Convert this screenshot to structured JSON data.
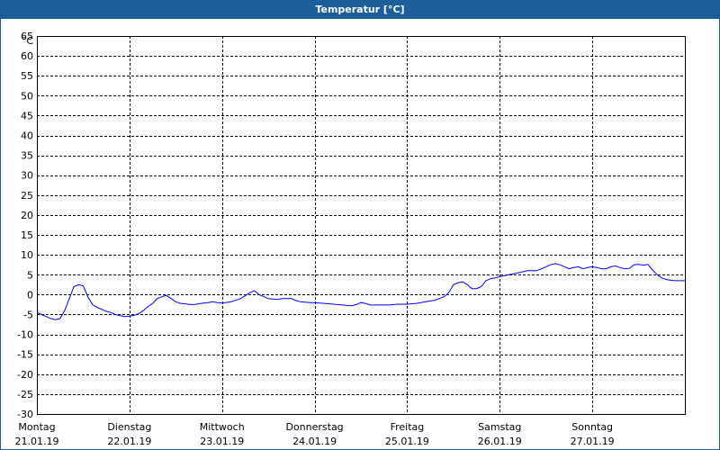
{
  "header": {
    "title": "Temperatur [°C]"
  },
  "chart_data": {
    "type": "line",
    "title": "Temperatur [°C]",
    "ylabel": "°C",
    "ylim": [
      -30,
      65
    ],
    "yticks": [
      65,
      60,
      55,
      50,
      45,
      40,
      35,
      30,
      25,
      20,
      15,
      10,
      5,
      0,
      -5,
      -10,
      -15,
      -20,
      -25,
      -30
    ],
    "xlim": [
      0,
      7
    ],
    "xticks": [
      {
        "day": "Montag",
        "date": "21.01.19",
        "x": 0
      },
      {
        "day": "Dienstag",
        "date": "22.01.19",
        "x": 1
      },
      {
        "day": "Mittwoch",
        "date": "23.01.19",
        "x": 2
      },
      {
        "day": "Donnerstag",
        "date": "24.01.19",
        "x": 3
      },
      {
        "day": "Freitag",
        "date": "25.01.19",
        "x": 4
      },
      {
        "day": "Samstag",
        "date": "26.01.19",
        "x": 5
      },
      {
        "day": "Sonntag",
        "date": "27.01.19",
        "x": 6
      }
    ],
    "grid": true,
    "colors": {
      "line": "#0000ff",
      "frame": "#1c5e97"
    },
    "series": [
      {
        "x": [
          0.0,
          0.05,
          0.1,
          0.15,
          0.2,
          0.25,
          0.3,
          0.35,
          0.4,
          0.45,
          0.5,
          0.55,
          0.6,
          0.65,
          0.7,
          0.75,
          0.8,
          0.85,
          0.9,
          0.95,
          1.0,
          1.05,
          1.1,
          1.15,
          1.2,
          1.25,
          1.3,
          1.35,
          1.4,
          1.45,
          1.5,
          1.55,
          1.6,
          1.65,
          1.7,
          1.75,
          1.8,
          1.85,
          1.9,
          1.95,
          2.0,
          2.1,
          2.2,
          2.3,
          2.35,
          2.4,
          2.5,
          2.6,
          2.65,
          2.7,
          2.75,
          2.8,
          2.85,
          2.9,
          2.95,
          3.0,
          3.1,
          3.2,
          3.3,
          3.4,
          3.45,
          3.5,
          3.55,
          3.6,
          3.7,
          3.8,
          3.9,
          4.0,
          4.1,
          4.2,
          4.3,
          4.4,
          4.45,
          4.5,
          4.55,
          4.6,
          4.65,
          4.7,
          4.75,
          4.8,
          4.85,
          4.9,
          4.95,
          5.0,
          5.1,
          5.2,
          5.3,
          5.4,
          5.5,
          5.55,
          5.6,
          5.65,
          5.7,
          5.75,
          5.8,
          5.85,
          5.9,
          5.95,
          6.0,
          6.05,
          6.1,
          6.15,
          6.2,
          6.25,
          6.3,
          6.35,
          6.4,
          6.45,
          6.5,
          6.55,
          6.6,
          6.65,
          6.7,
          6.75,
          6.8,
          6.85,
          6.9,
          6.95,
          7.0
        ],
        "values": [
          -4.5,
          -5.0,
          -5.5,
          -6.0,
          -6.3,
          -6.0,
          -4.0,
          -1.0,
          2.0,
          2.5,
          2.2,
          -0.5,
          -2.5,
          -3.2,
          -3.7,
          -4.2,
          -4.5,
          -5.0,
          -5.3,
          -5.5,
          -5.4,
          -5.2,
          -4.8,
          -4.0,
          -3.0,
          -2.2,
          -1.0,
          -0.5,
          -0.2,
          -1.0,
          -1.8,
          -2.2,
          -2.3,
          -2.5,
          -2.5,
          -2.3,
          -2.1,
          -2.0,
          -1.8,
          -2.0,
          -2.1,
          -1.8,
          -1.0,
          0.5,
          1.0,
          0.0,
          -1.0,
          -1.2,
          -1.0,
          -1.0,
          -1.0,
          -1.5,
          -1.8,
          -1.9,
          -2.0,
          -2.0,
          -2.2,
          -2.4,
          -2.6,
          -2.8,
          -2.5,
          -2.0,
          -2.2,
          -2.6,
          -2.6,
          -2.6,
          -2.4,
          -2.4,
          -2.2,
          -1.8,
          -1.4,
          -0.5,
          0.5,
          2.5,
          3.0,
          3.2,
          2.5,
          1.5,
          1.5,
          2.0,
          3.5,
          4.0,
          4.2,
          4.5,
          5.0,
          5.5,
          6.0,
          6.0,
          7.0,
          7.5,
          7.8,
          7.5,
          7.0,
          6.5,
          6.8,
          7.0,
          6.5,
          6.8,
          7.0,
          6.8,
          6.5,
          6.5,
          7.0,
          7.2,
          6.8,
          6.5,
          6.6,
          7.5,
          7.6,
          7.4,
          7.6,
          6.2,
          5.0,
          4.2,
          3.8,
          3.6,
          3.5,
          3.5,
          3.5
        ]
      }
    ]
  }
}
